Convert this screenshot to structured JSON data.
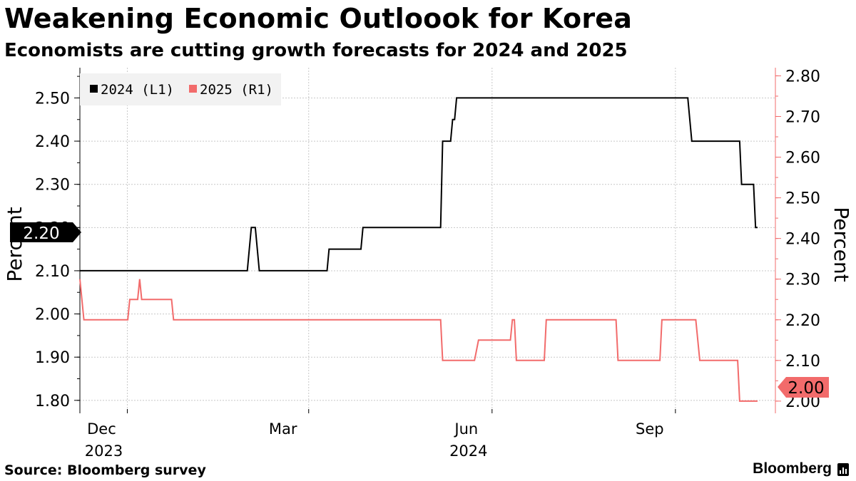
{
  "title": "Weakening Economic Outloook for Korea",
  "subtitle": "Economists are cutting growth forecasts for 2024 and 2025",
  "source": "Source: Bloomberg survey",
  "brand": "Bloomberg",
  "colors": {
    "series_2024": "#000000",
    "series_2025": "#f26b6b",
    "grid": "#bfbfbf",
    "legend_bg": "#f2f2f2"
  },
  "chart_data": {
    "type": "line",
    "title": "Weakening Economic Outloook for Korea",
    "subtitle": "Economists are cutting growth forecasts for 2024 and 2025",
    "y_left": {
      "label": "Percent",
      "ylim": [
        1.77,
        2.57
      ],
      "ticks": [
        "1.80",
        "1.90",
        "2.00",
        "2.10",
        "2.20",
        "2.30",
        "2.40",
        "2.50"
      ]
    },
    "y_right": {
      "label": "Percent",
      "ylim": [
        1.97,
        2.82
      ],
      "ticks": [
        "2.00",
        "2.10",
        "2.20",
        "2.30",
        "2.40",
        "2.50",
        "2.60",
        "2.70",
        "2.80"
      ]
    },
    "x_range_days": [
      0,
      327
    ],
    "x_ticks": [
      {
        "day": 22,
        "label": "Dec",
        "sub": "2023"
      },
      {
        "day": 113,
        "label": "Mar",
        "sub": ""
      },
      {
        "day": 205,
        "label": "Jun",
        "sub": "2024"
      },
      {
        "day": 297,
        "label": "Sep",
        "sub": ""
      }
    ],
    "legend": [
      "2024 (L1)",
      "2025 (R1)"
    ],
    "series": [
      {
        "name": "2024 (L1)",
        "axis": "left",
        "last_value": "2.20",
        "points": [
          [
            0,
            2.1
          ],
          [
            84,
            2.1
          ],
          [
            86,
            2.2
          ],
          [
            88,
            2.2
          ],
          [
            90,
            2.1
          ],
          [
            124,
            2.1
          ],
          [
            125,
            2.15
          ],
          [
            141,
            2.15
          ],
          [
            142,
            2.2
          ],
          [
            181,
            2.2
          ],
          [
            182,
            2.4
          ],
          [
            186,
            2.4
          ],
          [
            187,
            2.45
          ],
          [
            188,
            2.45
          ],
          [
            189,
            2.5
          ],
          [
            305,
            2.5
          ],
          [
            307,
            2.4
          ],
          [
            331,
            2.4
          ],
          [
            332,
            2.3
          ],
          [
            338,
            2.3
          ],
          [
            339,
            2.2
          ],
          [
            340,
            2.2
          ]
        ]
      },
      {
        "name": "2025 (R1)",
        "axis": "right",
        "last_value": "2.00",
        "points": [
          [
            0,
            2.3
          ],
          [
            2,
            2.2
          ],
          [
            24,
            2.2
          ],
          [
            25,
            2.25
          ],
          [
            29,
            2.25
          ],
          [
            30,
            2.3
          ],
          [
            31,
            2.25
          ],
          [
            46,
            2.25
          ],
          [
            47,
            2.2
          ],
          [
            181,
            2.2
          ],
          [
            182,
            2.1
          ],
          [
            198,
            2.1
          ],
          [
            200,
            2.15
          ],
          [
            216,
            2.15
          ],
          [
            217,
            2.2
          ],
          [
            218,
            2.2
          ],
          [
            219,
            2.1
          ],
          [
            233,
            2.1
          ],
          [
            234,
            2.2
          ],
          [
            269,
            2.2
          ],
          [
            270,
            2.1
          ],
          [
            291,
            2.1
          ],
          [
            292,
            2.2
          ],
          [
            309,
            2.2
          ],
          [
            311,
            2.1
          ],
          [
            330,
            2.1
          ],
          [
            331,
            2.0
          ],
          [
            340,
            2.0
          ]
        ]
      }
    ]
  }
}
